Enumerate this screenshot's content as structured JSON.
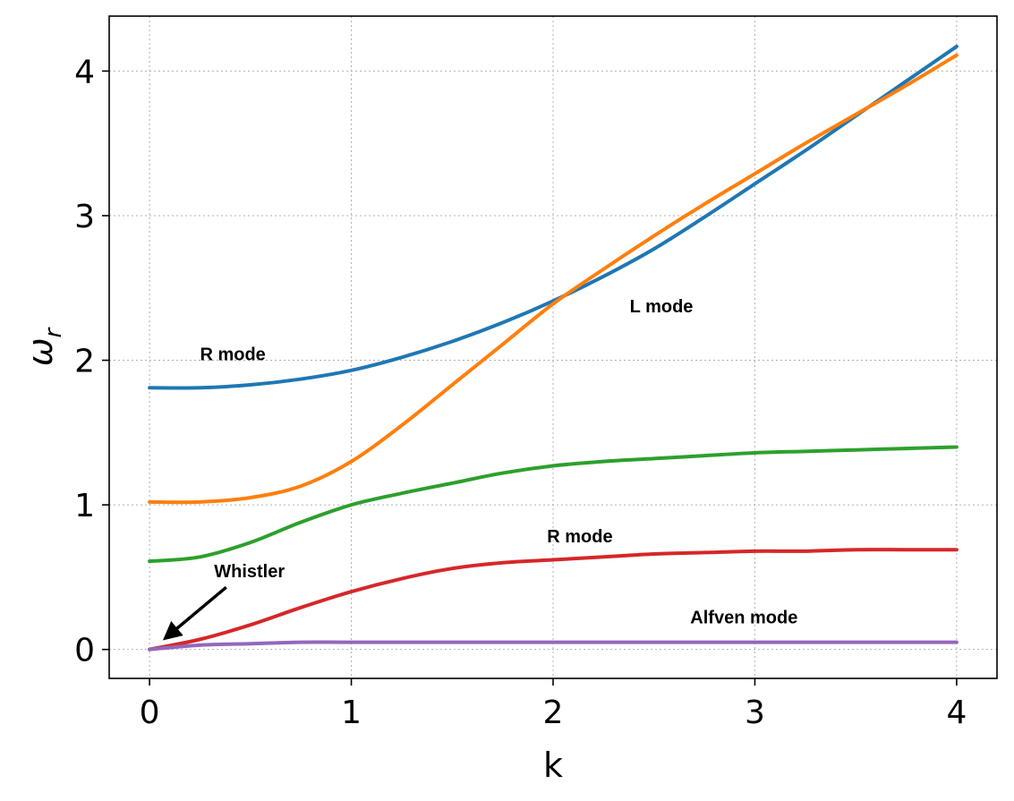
{
  "chart_data": {
    "type": "line",
    "xlabel": "k",
    "ylabel": "ω",
    "ylabel_sub": "r",
    "xlim": [
      -0.2,
      4.2
    ],
    "ylim": [
      -0.2,
      4.38
    ],
    "xticks": [
      0,
      1,
      2,
      3,
      4
    ],
    "yticks": [
      0,
      1,
      2,
      3,
      4
    ],
    "grid": true,
    "series": [
      {
        "color": "#1f77b4",
        "x": [
          0,
          0.25,
          0.5,
          0.75,
          1.0,
          1.25,
          1.5,
          1.75,
          2.0,
          2.25,
          2.5,
          2.75,
          3.0,
          3.25,
          3.5,
          3.75,
          4.0
        ],
        "y": [
          1.81,
          1.81,
          1.83,
          1.87,
          1.93,
          2.02,
          2.13,
          2.26,
          2.41,
          2.58,
          2.77,
          2.99,
          3.22,
          3.45,
          3.69,
          3.93,
          4.17
        ]
      },
      {
        "color": "#ff7f0e",
        "x": [
          0,
          0.25,
          0.5,
          0.75,
          1.0,
          1.25,
          1.5,
          1.75,
          2.0,
          2.25,
          2.5,
          2.75,
          3.0,
          3.25,
          3.5,
          3.75,
          4.0
        ],
        "y": [
          1.02,
          1.02,
          1.05,
          1.13,
          1.3,
          1.55,
          1.83,
          2.11,
          2.39,
          2.63,
          2.86,
          3.08,
          3.29,
          3.5,
          3.7,
          3.9,
          4.11
        ]
      },
      {
        "color": "#2ca02c",
        "x": [
          0,
          0.25,
          0.5,
          0.75,
          1.0,
          1.25,
          1.5,
          1.75,
          2.0,
          2.25,
          2.5,
          2.75,
          3.0,
          3.25,
          3.5,
          3.75,
          4.0
        ],
        "y": [
          0.61,
          0.64,
          0.74,
          0.88,
          1.0,
          1.08,
          1.15,
          1.22,
          1.27,
          1.3,
          1.32,
          1.34,
          1.36,
          1.37,
          1.38,
          1.39,
          1.4
        ]
      },
      {
        "color": "#d62728",
        "x": [
          0,
          0.25,
          0.5,
          0.75,
          1.0,
          1.25,
          1.5,
          1.75,
          2.0,
          2.25,
          2.5,
          2.75,
          3.0,
          3.25,
          3.5,
          3.75,
          4.0
        ],
        "y": [
          0.0,
          0.07,
          0.17,
          0.29,
          0.4,
          0.49,
          0.56,
          0.6,
          0.62,
          0.64,
          0.66,
          0.67,
          0.68,
          0.68,
          0.69,
          0.69,
          0.69
        ]
      },
      {
        "color": "#9467bd",
        "x": [
          0,
          0.25,
          0.5,
          0.75,
          1.0,
          1.5,
          2.0,
          2.5,
          3.0,
          3.5,
          4.0
        ],
        "y": [
          0.0,
          0.03,
          0.04,
          0.05,
          0.05,
          0.05,
          0.05,
          0.05,
          0.05,
          0.05,
          0.05
        ]
      }
    ],
    "annotations": [
      {
        "text": "R mode",
        "x": 0.25,
        "y": 2.0
      },
      {
        "text": "L mode",
        "x": 2.38,
        "y": 2.33
      },
      {
        "text": "R mode",
        "x": 1.97,
        "y": 0.74
      },
      {
        "text": "Whistler",
        "x": 0.32,
        "y": 0.5
      },
      {
        "text": "Alfven mode",
        "x": 2.68,
        "y": 0.18
      }
    ],
    "arrow": {
      "from": [
        0.38,
        0.43
      ],
      "to": [
        0.08,
        0.08
      ]
    }
  }
}
